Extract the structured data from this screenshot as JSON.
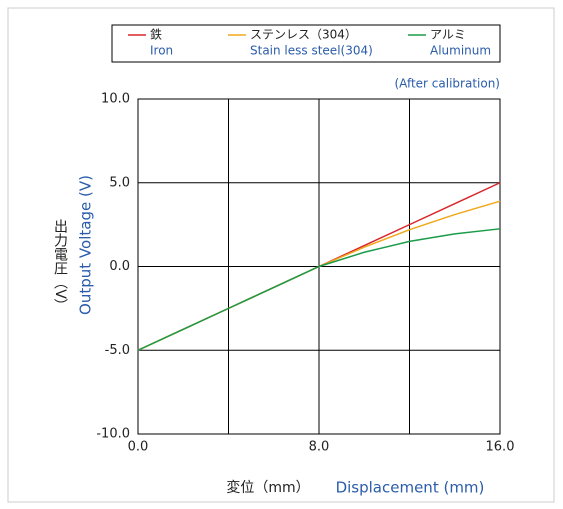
{
  "chart_data": {
    "type": "line",
    "annotation": "(After calibration)",
    "xlabel_ja": "変位（mm）",
    "xlabel": "Displacement (mm)",
    "ylabel_ja": "出力電圧（V）",
    "ylabel": "Output Voltage (V)",
    "x": [
      0,
      2,
      4,
      6,
      8,
      10,
      12,
      14,
      16
    ],
    "series": [
      {
        "name": "鉄",
        "name_en": "Iron",
        "color": "#d9262b",
        "values": [
          -5,
          -3.75,
          -2.5,
          -1.25,
          0,
          1.25,
          2.5,
          3.75,
          5
        ]
      },
      {
        "name": "ステンレス（304）",
        "name_en": "Stain less steel(304)",
        "color": "#f0a81c",
        "values": [
          -5,
          -3.75,
          -2.5,
          -1.25,
          0,
          1.15,
          2.2,
          3.1,
          3.9
        ]
      },
      {
        "name": "アルミ",
        "name_en": "Aluminum",
        "color": "#1a9c48",
        "values": [
          -5,
          -3.75,
          -2.5,
          -1.25,
          0,
          0.85,
          1.5,
          1.95,
          2.25
        ]
      }
    ],
    "xlim": [
      0,
      16
    ],
    "xticks": [
      {
        "value": 0,
        "label": "0.0"
      },
      {
        "value": 8,
        "label": "8.0"
      },
      {
        "value": 16,
        "label": "16.0"
      }
    ],
    "xgrid": [
      0,
      4,
      8,
      12,
      16
    ],
    "ylim": [
      -10,
      10
    ],
    "yticks": [
      {
        "value": 10,
        "label": "10.0"
      },
      {
        "value": 5,
        "label": "5.0"
      },
      {
        "value": 0,
        "label": "0.0"
      },
      {
        "value": -5,
        "label": "-5.0"
      },
      {
        "value": -10,
        "label": "-10.0"
      }
    ],
    "grid": true
  }
}
